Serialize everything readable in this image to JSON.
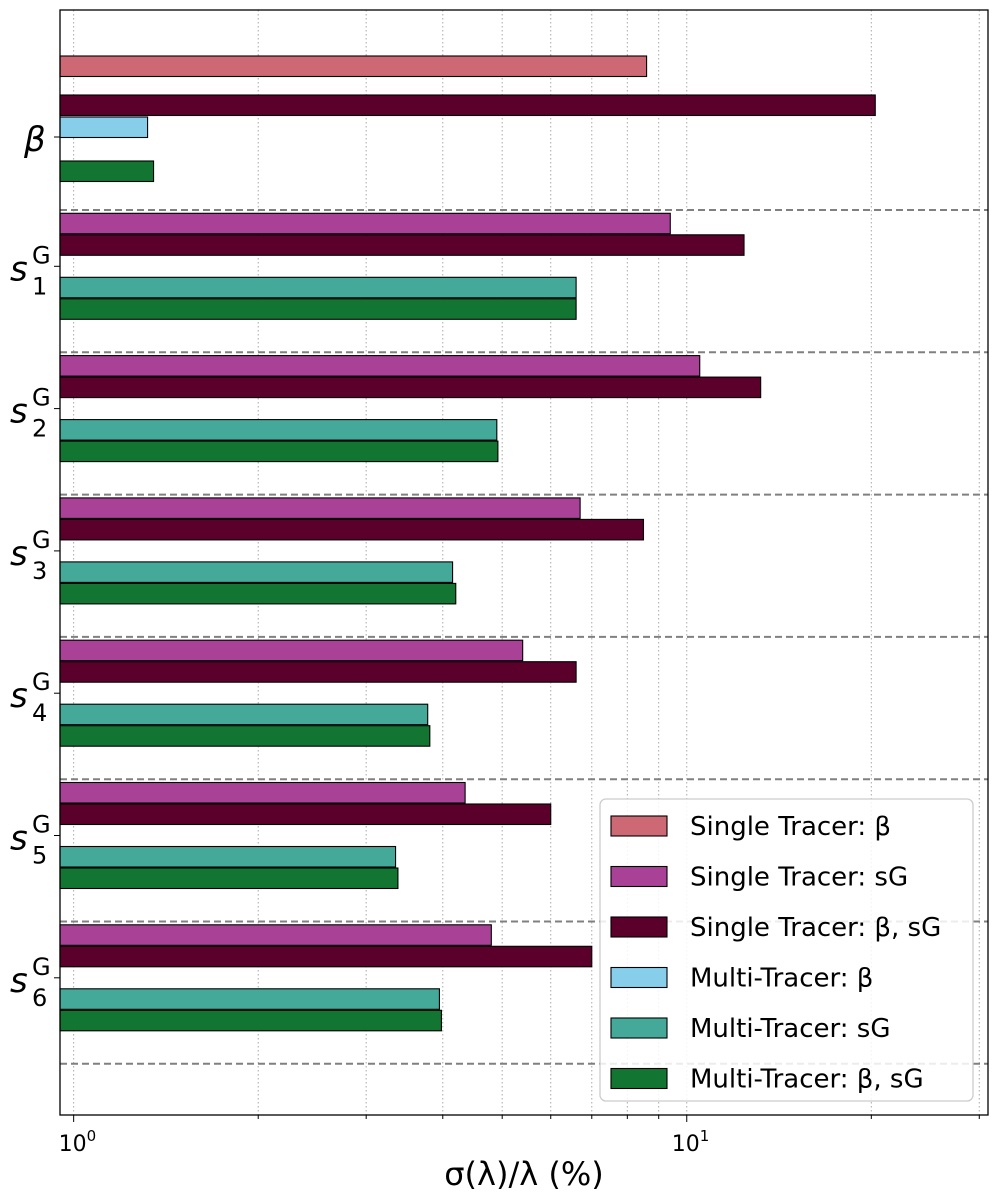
{
  "chart_data": {
    "type": "bar",
    "orientation": "horizontal",
    "xscale": "log",
    "xlim": [
      0.95,
      31
    ],
    "xlabel": "σ(λ)/λ   (%)",
    "xticks": [
      {
        "value": 1,
        "base": "10",
        "exp": "0"
      },
      {
        "value": 10,
        "base": "10",
        "exp": "1"
      }
    ],
    "grid": "x-major-and-minor-dotted",
    "group_separators": "dashed",
    "legend_position": "lower-right",
    "series": [
      {
        "key": "st_beta",
        "name": "Single Tracer: β",
        "color": "#cd6875"
      },
      {
        "key": "st_sG",
        "name": "Single Tracer: sG",
        "color": "#a94297"
      },
      {
        "key": "st_beta_sG",
        "name": "Single Tracer: β, sG",
        "color": "#5a002a"
      },
      {
        "key": "mt_beta",
        "name": "Multi-Tracer: β",
        "color": "#87ceeb"
      },
      {
        "key": "mt_sG",
        "name": "Multi-Tracer: sG",
        "color": "#45a999"
      },
      {
        "key": "mt_beta_sG",
        "name": "Multi-Tracer: β, sG",
        "color": "#127532"
      }
    ],
    "groups": [
      {
        "name": "β",
        "sym": "β",
        "sub": "",
        "sup": "",
        "bars": [
          {
            "series": "st_beta",
            "value": 8.6
          },
          {
            "series": "st_beta_sG",
            "value": 20.3
          },
          {
            "series": "mt_beta",
            "value": 1.32
          },
          {
            "series": "mt_beta_sG",
            "value": 1.35
          }
        ]
      },
      {
        "name": "s1G",
        "sym": "s",
        "sub": "1",
        "sup": "G",
        "bars": [
          {
            "series": "st_sG",
            "value": 9.4
          },
          {
            "series": "st_beta_sG",
            "value": 12.4
          },
          {
            "series": "mt_sG",
            "value": 6.6
          },
          {
            "series": "mt_beta_sG",
            "value": 6.6
          }
        ]
      },
      {
        "name": "s2G",
        "sym": "s",
        "sub": "2",
        "sup": "G",
        "bars": [
          {
            "series": "st_sG",
            "value": 10.5
          },
          {
            "series": "st_beta_sG",
            "value": 13.2
          },
          {
            "series": "mt_sG",
            "value": 4.9
          },
          {
            "series": "mt_beta_sG",
            "value": 4.92
          }
        ]
      },
      {
        "name": "s3G",
        "sym": "s",
        "sub": "3",
        "sup": "G",
        "bars": [
          {
            "series": "st_sG",
            "value": 6.7
          },
          {
            "series": "st_beta_sG",
            "value": 8.5
          },
          {
            "series": "mt_sG",
            "value": 4.15
          },
          {
            "series": "mt_beta_sG",
            "value": 4.2
          }
        ]
      },
      {
        "name": "s4G",
        "sym": "s",
        "sub": "4",
        "sup": "G",
        "bars": [
          {
            "series": "st_sG",
            "value": 5.4
          },
          {
            "series": "st_beta_sG",
            "value": 6.6
          },
          {
            "series": "mt_sG",
            "value": 3.78
          },
          {
            "series": "mt_beta_sG",
            "value": 3.81
          }
        ]
      },
      {
        "name": "s5G",
        "sym": "s",
        "sub": "5",
        "sup": "G",
        "bars": [
          {
            "series": "st_sG",
            "value": 4.35
          },
          {
            "series": "st_beta_sG",
            "value": 6.0
          },
          {
            "series": "mt_sG",
            "value": 3.35
          },
          {
            "series": "mt_beta_sG",
            "value": 3.38
          }
        ]
      },
      {
        "name": "s6G",
        "sym": "s",
        "sub": "6",
        "sup": "G",
        "bars": [
          {
            "series": "st_sG",
            "value": 4.8
          },
          {
            "series": "st_beta_sG",
            "value": 7.0
          },
          {
            "series": "mt_sG",
            "value": 3.95
          },
          {
            "series": "mt_beta_sG",
            "value": 3.98
          }
        ]
      }
    ]
  }
}
